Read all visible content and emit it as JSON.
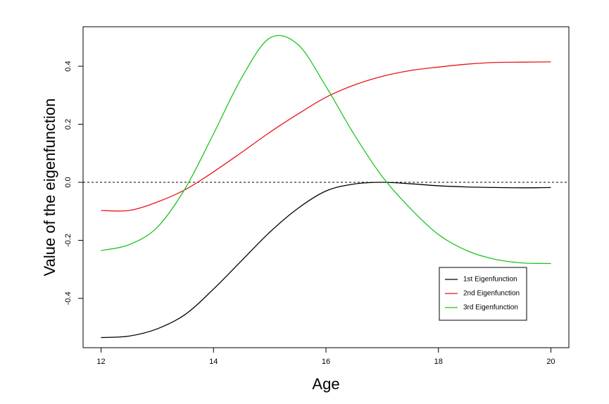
{
  "chart_data": {
    "type": "line",
    "x_label": "Age",
    "y_label": "Value of the eigenfunction",
    "x": [
      12,
      12.5,
      13,
      13.5,
      14,
      14.5,
      15,
      15.5,
      16,
      16.5,
      17,
      17.5,
      18,
      18.5,
      19,
      19.5,
      20
    ],
    "series": [
      {
        "name": "1st Eigenfunction",
        "color": "#000000",
        "values": [
          -0.535,
          -0.53,
          -0.505,
          -0.455,
          -0.368,
          -0.27,
          -0.172,
          -0.09,
          -0.03,
          -0.006,
          0.0,
          -0.005,
          -0.012,
          -0.016,
          -0.018,
          -0.019,
          -0.018
        ]
      },
      {
        "name": "2nd Eigenfunction",
        "color": "#e8141b",
        "values": [
          -0.097,
          -0.097,
          -0.068,
          -0.025,
          0.036,
          0.103,
          0.172,
          0.235,
          0.293,
          0.335,
          0.365,
          0.385,
          0.397,
          0.407,
          0.413,
          0.414,
          0.415
        ]
      },
      {
        "name": "3rd Eigenfunction",
        "color": "#1fc41f",
        "values": [
          -0.235,
          -0.215,
          -0.155,
          -0.02,
          0.167,
          0.36,
          0.497,
          0.475,
          0.33,
          0.165,
          0.02,
          -0.09,
          -0.18,
          -0.235,
          -0.265,
          -0.278,
          -0.28
        ]
      }
    ],
    "xlim": [
      11.68,
      20.32
    ],
    "ylim": [
      -0.57,
      0.536
    ],
    "xticks": [
      12,
      14,
      16,
      18,
      20
    ],
    "yticks": [
      -0.4,
      -0.2,
      {
        "value": 0,
        "label": "0.0"
      },
      0.2,
      0.4
    ],
    "reference_line": 0,
    "legend": "bottomright"
  }
}
